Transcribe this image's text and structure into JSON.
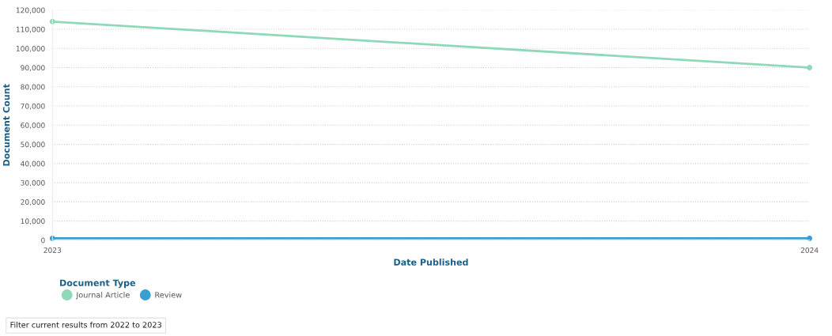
{
  "chart_data": {
    "type": "line",
    "xlabel": "Date Published",
    "ylabel": "Document Count",
    "legend_title": "Document Type",
    "x": [
      2023,
      2024
    ],
    "xlim": [
      2023,
      2024
    ],
    "xticks": [
      2023,
      2024
    ],
    "ylim": [
      0,
      120000
    ],
    "yticks": [
      {
        "value": 0,
        "label": "0"
      },
      {
        "value": 10000,
        "label": "10,000"
      },
      {
        "value": 20000,
        "label": "20,000"
      },
      {
        "value": 30000,
        "label": "30,000"
      },
      {
        "value": 40000,
        "label": "40,000"
      },
      {
        "value": 50000,
        "label": "50,000"
      },
      {
        "value": 60000,
        "label": "60,000"
      },
      {
        "value": 70000,
        "label": "70,000"
      },
      {
        "value": 80000,
        "label": "80,000"
      },
      {
        "value": 90000,
        "label": "90,000"
      },
      {
        "value": 100000,
        "label": "100,000"
      },
      {
        "value": 110000,
        "label": "110,000"
      },
      {
        "value": 120000,
        "label": "120,000"
      }
    ],
    "series": [
      {
        "name": "Journal Article",
        "color": "#8fd8b8",
        "values": [
          114000,
          90000
        ]
      },
      {
        "name": "Review",
        "color": "#3a9fd0",
        "values": [
          1000,
          1000
        ]
      }
    ],
    "grid": "y",
    "legend": "bottom left",
    "marker": "circle",
    "line_style": "solid",
    "annotations": [
      "Filter current results from 2022 to 2023"
    ]
  }
}
